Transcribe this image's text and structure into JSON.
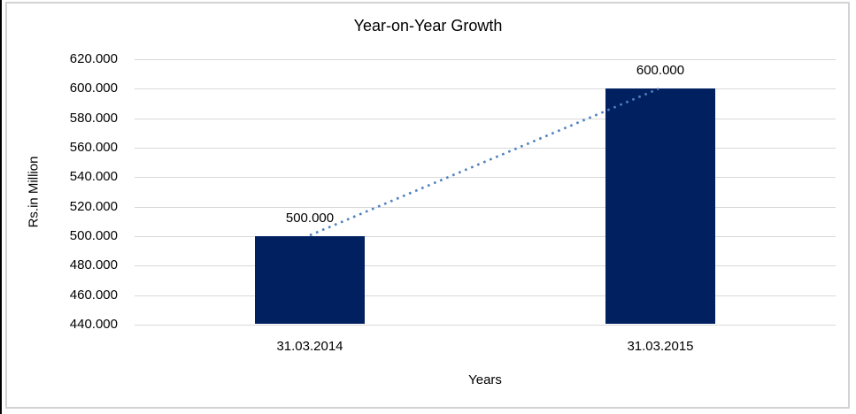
{
  "window": {
    "background": "#ffffff",
    "frame_border_color": "#d3d3d3",
    "left_edge_color": "#000000"
  },
  "chart_data": {
    "type": "bar",
    "title": "Year-on-Year Growth",
    "xlabel": "Years",
    "ylabel": "Rs.in Million",
    "categories": [
      "31.03.2014",
      "31.03.2015"
    ],
    "values": [
      500000,
      600000
    ],
    "value_labels": [
      "500.000",
      "600.000"
    ],
    "ylim": [
      440000,
      620000
    ],
    "y_tick_step": 20000,
    "y_ticks": [
      {
        "value": 620000,
        "label": "620.000"
      },
      {
        "value": 600000,
        "label": "600.000"
      },
      {
        "value": 580000,
        "label": "580.000"
      },
      {
        "value": 560000,
        "label": "560.000"
      },
      {
        "value": 540000,
        "label": "540.000"
      },
      {
        "value": 520000,
        "label": "520.000"
      },
      {
        "value": 500000,
        "label": "500.000"
      },
      {
        "value": 480000,
        "label": "480.000"
      },
      {
        "value": 460000,
        "label": "460.000"
      },
      {
        "value": 440000,
        "label": "440.000"
      }
    ],
    "grid": true,
    "legend": "none",
    "colors": {
      "bar": "#002060",
      "gridline": "#d9d9d9",
      "text": "#000000",
      "trendline": "#4f81bd"
    },
    "trendline": {
      "style": "dotted",
      "color": "#4f81bd",
      "from": {
        "category": "31.03.2014",
        "value": 500000
      },
      "to": {
        "category": "31.03.2015",
        "value": 600000
      }
    }
  }
}
